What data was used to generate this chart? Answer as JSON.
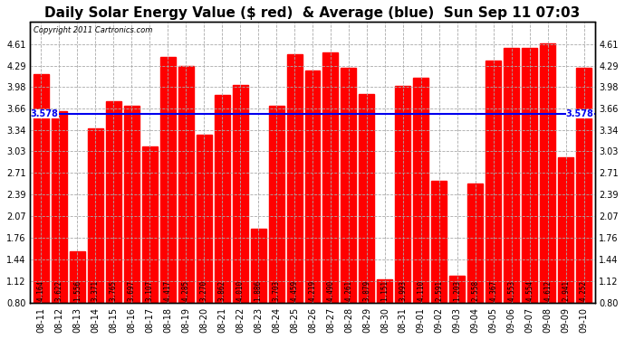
{
  "categories": [
    "08-11",
    "08-12",
    "08-13",
    "08-14",
    "08-15",
    "08-16",
    "08-17",
    "08-18",
    "08-19",
    "08-20",
    "08-21",
    "08-22",
    "08-23",
    "08-24",
    "08-25",
    "08-26",
    "08-27",
    "08-28",
    "08-29",
    "08-30",
    "08-31",
    "09-01",
    "09-02",
    "09-03",
    "09-04",
    "09-05",
    "09-06",
    "09-07",
    "09-08",
    "09-09",
    "09-10"
  ],
  "values": [
    4.164,
    3.622,
    1.556,
    3.371,
    3.765,
    3.697,
    3.107,
    4.417,
    4.285,
    3.27,
    3.862,
    4.01,
    1.886,
    3.703,
    4.459,
    4.219,
    4.49,
    4.261,
    3.879,
    1.151,
    3.993,
    4.11,
    2.591,
    1.203,
    2.558,
    4.367,
    4.553,
    4.554,
    4.612,
    2.941,
    4.252
  ],
  "average": 3.578,
  "title": "Daily Solar Energy Value ($ red)  & Average (blue)  Sun Sep 11 07:03",
  "copyright": "Copyright 2011 Cartronics.com",
  "bar_color": "#ff0000",
  "avg_color": "#0000ee",
  "background_color": "#ffffff",
  "grid_color": "#aaaaaa",
  "text_color": "#000000",
  "ylim_min": 0.8,
  "ylim_max": 4.93,
  "yticks": [
    0.8,
    1.12,
    1.44,
    1.76,
    2.07,
    2.39,
    2.71,
    3.03,
    3.34,
    3.66,
    3.98,
    4.29,
    4.61
  ],
  "title_fontsize": 11,
  "tick_fontsize": 7,
  "value_fontsize": 5.5,
  "avg_label": "3.578"
}
